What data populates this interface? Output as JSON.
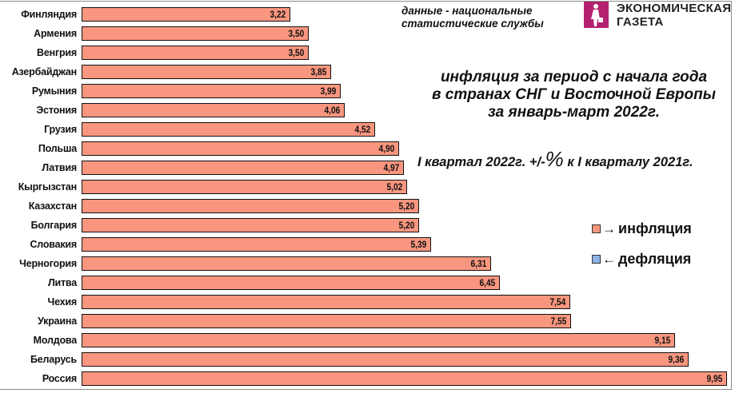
{
  "source_note": [
    "данные - национальные",
    "статистические службы"
  ],
  "logo": {
    "line1": "ЭКОНОМИЧЕСКАЯ",
    "line2": "ГАЗЕТА",
    "color": "#b3216f"
  },
  "title_lines": [
    "инфляция за период с начала года",
    "в странах СНГ и Восточной Европы",
    "за январь-март 2022г."
  ],
  "subtitle": {
    "before": "I квартал 2022г. +/-",
    "pct": "%",
    "after": " к I кварталу 2021г."
  },
  "legend": [
    {
      "arrow": "→",
      "label": "инфляция",
      "color": "#f9967f"
    },
    {
      "arrow": "←",
      "label": "дефляция",
      "color": "#8eb4e8"
    }
  ],
  "chart_data": {
    "type": "bar",
    "orientation": "horizontal",
    "title": "инфляция за период с начала года в странах СНГ и Восточной Европы за январь-март 2022г.",
    "subtitle": "I квартал 2022г. +/-% к I кварталу 2021г.",
    "categories": [
      "Финляндия",
      "Армения",
      "Венгрия",
      "Азербайджан",
      "Румыния",
      "Эстония",
      "Грузия",
      "Польша",
      "Латвия",
      "Кыргызстан",
      "Казахстан",
      "Болгария",
      "Словакия",
      "Черногория",
      "Литва",
      "Чехия",
      "Украина",
      "Молдова",
      "Беларусь",
      "Россия"
    ],
    "values": [
      3.22,
      3.5,
      3.5,
      3.85,
      3.99,
      4.06,
      4.52,
      4.9,
      4.97,
      5.02,
      5.2,
      5.2,
      5.39,
      6.31,
      6.45,
      7.54,
      7.55,
      9.15,
      9.36,
      9.95
    ],
    "value_labels": [
      "3,22",
      "3,50",
      "3,50",
      "3,85",
      "3,99",
      "4,06",
      "4,52",
      "4,90",
      "4,97",
      "5,02",
      "5,20",
      "5,20",
      "5,39",
      "6,31",
      "6,45",
      "7,54",
      "7,55",
      "9,15",
      "9,36",
      "9,95"
    ],
    "bar_color": "#f9967f",
    "xlabel": "",
    "ylabel": "",
    "grid": false,
    "legend": [
      "инфляция",
      "дефляция"
    ],
    "legend_position": "right"
  }
}
